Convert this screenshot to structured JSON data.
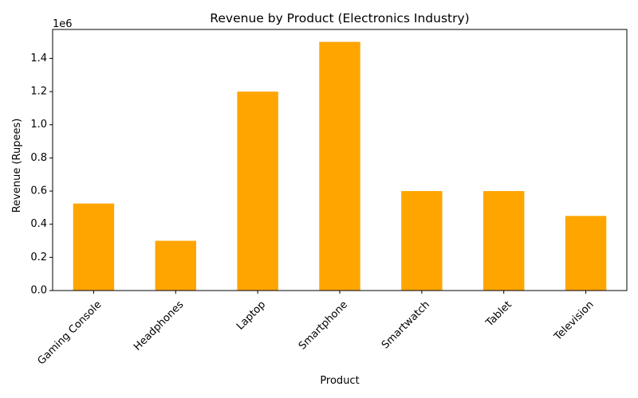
{
  "chart_data": {
    "type": "bar",
    "title": "Revenue by Product (Electronics Industry)",
    "xlabel": "Product",
    "ylabel": "Revenue (Rupees)",
    "y_offset_label": "1e6",
    "categories": [
      "Gaming Console",
      "Headphones",
      "Laptop",
      "Smartphone",
      "Smartwatch",
      "Tablet",
      "Television"
    ],
    "values": [
      525000,
      300000,
      1200000,
      1500000,
      600000,
      600000,
      450000
    ],
    "ylim": [
      0,
      1575000
    ],
    "y_ticks": [
      0,
      200000,
      400000,
      600000,
      800000,
      1000000,
      1200000,
      1400000
    ],
    "y_tick_labels": [
      "0.0",
      "0.2",
      "0.4",
      "0.6",
      "0.8",
      "1.0",
      "1.2",
      "1.4"
    ],
    "x_tick_rotation": 45,
    "grid": false,
    "bar_color": "#ffa500"
  }
}
